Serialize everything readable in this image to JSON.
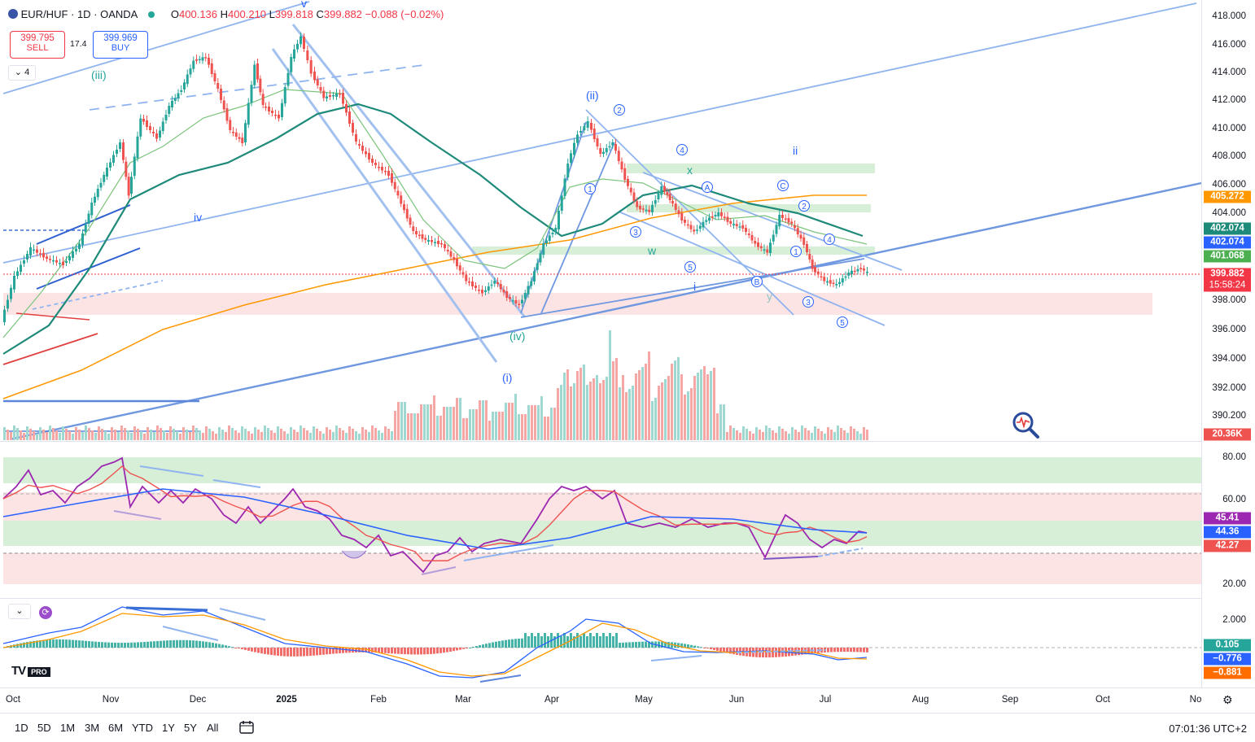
{
  "header": {
    "symbol": "EUR/HUF · 1D · OANDA",
    "open_label": "O",
    "open": "400.136",
    "high_label": "H",
    "high": "400.210",
    "low_label": "L",
    "low": "399.818",
    "close_label": "C",
    "close": "399.882",
    "change": "−0.088 (−0.02%)"
  },
  "trade": {
    "sell_price": "399.795",
    "sell_label": "SELL",
    "spread": "17.4",
    "buy_price": "399.969",
    "buy_label": "BUY"
  },
  "indicator_toggle": {
    "count": "4"
  },
  "price_axis": {
    "main_ticks": [
      "418.000",
      "416.000",
      "414.000",
      "412.000",
      "410.000",
      "408.000",
      "406.000",
      "404.000",
      "398.000",
      "396.000",
      "394.000",
      "392.000",
      "390.200"
    ],
    "rsi_ticks": [
      "80.00",
      "60.00",
      "20.00"
    ],
    "macd_ticks": [
      "2.000"
    ]
  },
  "price_tags": {
    "ma_orange": "405.272",
    "ma_teal": "402.074",
    "ma_blue": "402.074",
    "ma_green": "401.068",
    "last_price": "399.882",
    "countdown": "15:58:24",
    "volume": "20.36K",
    "rsi_a": "45.41",
    "rsi_b": "44.36",
    "rsi_c": "42.27",
    "macd_a": "0.105",
    "macd_b": "−0.776",
    "macd_c": "−0.881"
  },
  "colors": {
    "up": "#26a69a",
    "down": "#ef5350",
    "accent": "#2962ff",
    "ma_orange": "#ff9800",
    "ma_teal": "#1e8a7a",
    "rsi": "#9c27b0"
  },
  "time_axis": [
    "Oct",
    "Nov",
    "Dec",
    "2025",
    "Feb",
    "Mar",
    "Apr",
    "May",
    "Jun",
    "Jul",
    "Aug",
    "Sep",
    "Oct",
    "No"
  ],
  "range_buttons": [
    "1D",
    "5D",
    "1M",
    "3M",
    "6M",
    "YTD",
    "1Y",
    "5Y",
    "All"
  ],
  "clock": "07:01:36 UTC+2",
  "logo": {
    "mark": "TV",
    "badge": "PRO"
  },
  "wave_labels": {
    "iii": "(iii)",
    "ii_paren": "(ii)",
    "iv_paren": "(iv)",
    "i_paren": "(i)",
    "iv": "iv",
    "ii": "ii",
    "i": "i",
    "v": "v",
    "w": "w",
    "x": "x",
    "y": "y",
    "A": "A",
    "B": "B",
    "C": "C",
    "n1": "1",
    "n2": "2",
    "n3": "3",
    "n4": "4",
    "n5": "5"
  },
  "icons": {
    "magnifier": "magnifier-icon",
    "settings": "gear-icon",
    "calendar": "calendar-icon",
    "chevron": "chevron-down-icon",
    "refresh": "refresh-icon",
    "flag": "eu-flag-icon"
  }
}
